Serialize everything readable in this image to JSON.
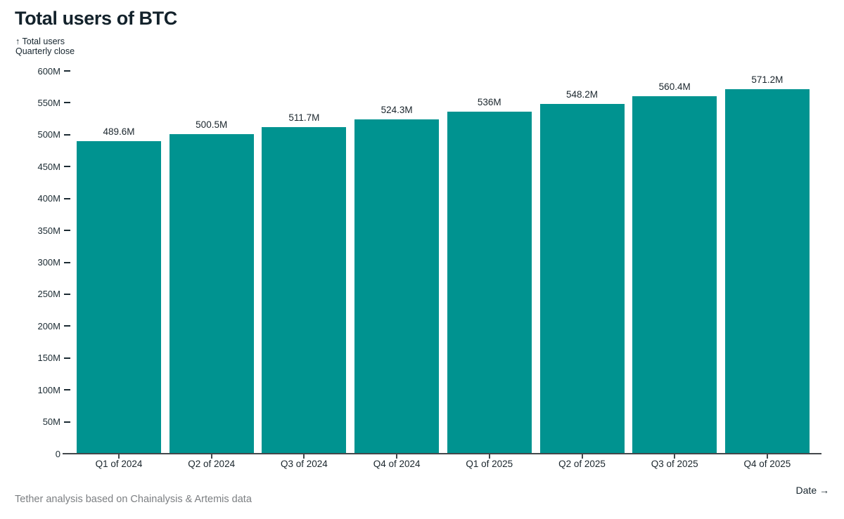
{
  "title": "Total users of BTC",
  "subtitle": "↑ Total users\nQuarterly close",
  "footer": {
    "source": "Tether analysis based on Chainalysis & Artemis data",
    "xaxis_hint": "Date →"
  },
  "colors": {
    "bar": "#009390",
    "axis": "#43484b",
    "text_dark": "#1a252c",
    "text_muted": "#7c7f82"
  },
  "chart_data": {
    "type": "bar",
    "title": "Total users of BTC",
    "ylabel": "Total users",
    "xlabel": "Date",
    "subtitle": "Quarterly close",
    "categories": [
      "Q1 of 2024",
      "Q2 of 2024",
      "Q3 of 2024",
      "Q4 of 2024",
      "Q1 of 2025",
      "Q2 of 2025",
      "Q3 of 2025",
      "Q4 of 2025"
    ],
    "values": [
      489.6,
      500.5,
      511.7,
      524.3,
      536,
      548.2,
      560.4,
      571.2
    ],
    "value_labels": [
      "489.6M",
      "500.5M",
      "511.7M",
      "524.3M",
      "536M",
      "548.2M",
      "560.4M",
      "571.2M"
    ],
    "unit": "M",
    "ylim": [
      0,
      600
    ],
    "ytick_step": 50,
    "ytick_labels": [
      "0",
      "50M",
      "100M",
      "150M",
      "200M",
      "250M",
      "300M",
      "350M",
      "400M",
      "450M",
      "500M",
      "550M",
      "600M"
    ],
    "grid": false,
    "legend": false
  }
}
